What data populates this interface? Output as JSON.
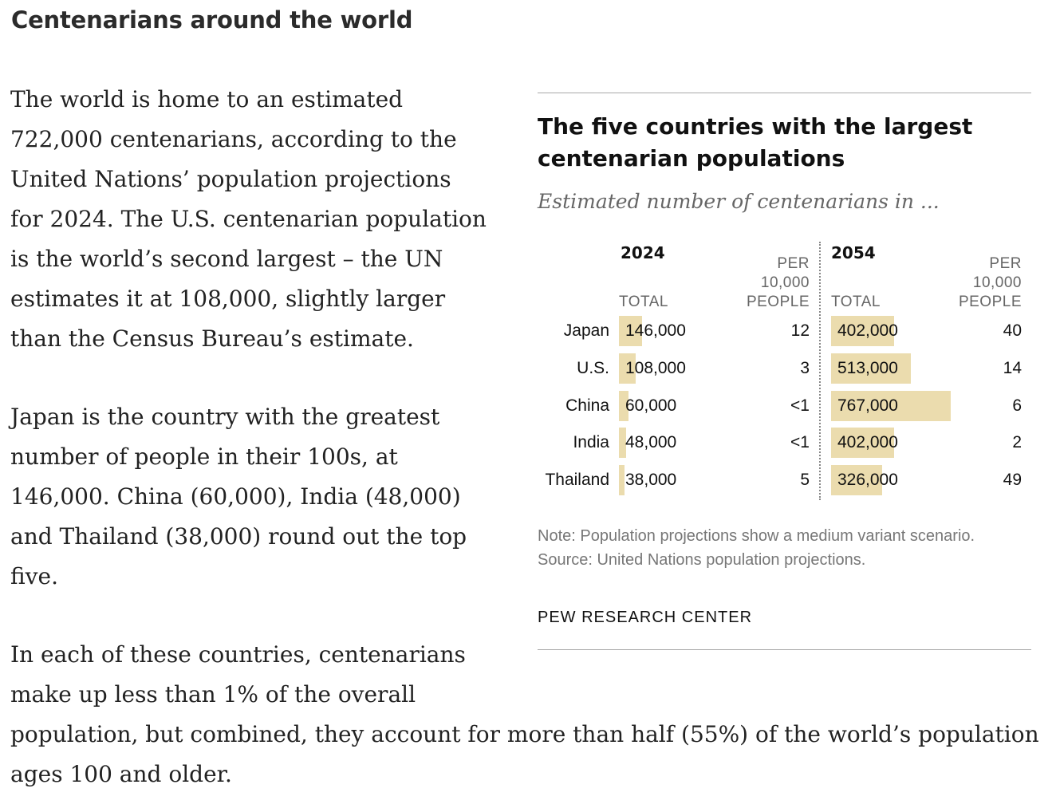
{
  "heading": "Centenarians around the world",
  "paragraphs": [
    "The world is home to an estimated 722,000 centenarians, according to the United Nations’ population projections for 2024. The U.S. centenarian population is the world’s second largest – the UN estimates it at 108,000, slightly larger than the Census Bureau’s estimate.",
    "Japan is the country with the greatest number of people in their 100s, at 146,000. China (60,000), India (48,000) and Thailand (38,000) round out the top five.",
    "In each of these countries, centenarians make up less than 1% of the overall population, but combined, they account for more than half (55%) of the world’s population ages 100 and older."
  ],
  "chart_data": {
    "type": "bar",
    "title": "The five countries with the largest centenarian populations",
    "subtitle": "Estimated number of centenarians in ...",
    "categories": [
      "Japan",
      "U.S.",
      "China",
      "India",
      "Thailand"
    ],
    "panels": [
      {
        "year": "2024",
        "total_label": "TOTAL",
        "per_label_lines": [
          "PER",
          "10,000",
          "PEOPLE"
        ],
        "values": [
          146000,
          108000,
          60000,
          48000,
          38000
        ],
        "value_labels": [
          "146,000",
          "108,000",
          "60,000",
          "48,000",
          "38,000"
        ],
        "per_10000_labels": [
          "12",
          "3",
          "<1",
          "<1",
          "5"
        ]
      },
      {
        "year": "2054",
        "total_label": "TOTAL",
        "per_label_lines": [
          "PER",
          "10,000",
          "PEOPLE"
        ],
        "values": [
          402000,
          513000,
          767000,
          402000,
          326000
        ],
        "value_labels": [
          "402,000",
          "513,000",
          "767,000",
          "402,000",
          "326,000"
        ],
        "per_10000_labels": [
          "40",
          "14",
          "6",
          "2",
          "49"
        ]
      }
    ],
    "xlim": [
      0,
      767000
    ],
    "colors": {
      "bar": "#ebdcae"
    },
    "note": "Note: Population projections show a medium variant scenario.",
    "source": "Source: United Nations population projections.",
    "credit": "PEW RESEARCH CENTER"
  }
}
